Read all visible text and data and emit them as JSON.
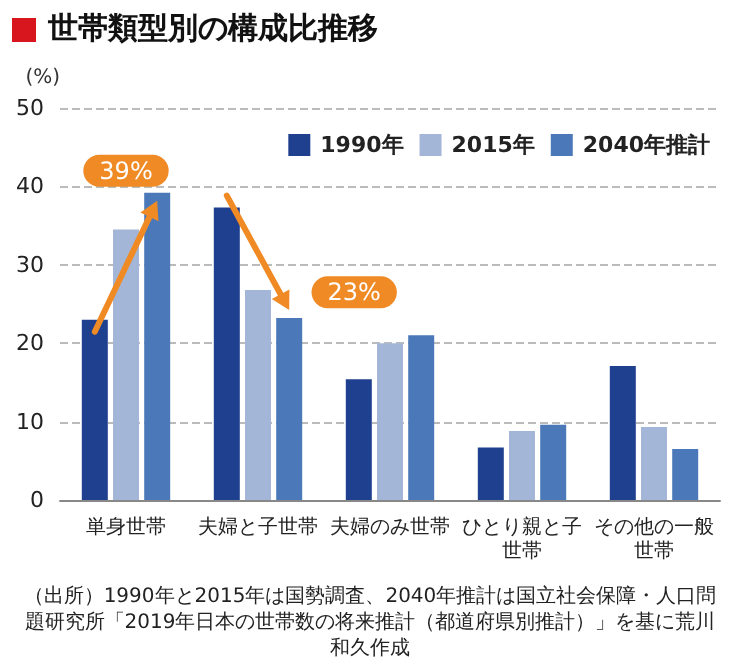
{
  "chart_data": {
    "type": "bar",
    "title": "世帯類型別の構成比推移",
    "ylabel": "(%)",
    "categories": [
      "単身世帯",
      "夫婦と子世帯",
      "夫婦のみ世帯",
      "ひとり親と子世帯",
      "その他の一般世帯"
    ],
    "series": [
      {
        "name": "1990年",
        "color": "#1f3f8f",
        "values": [
          23.0,
          37.3,
          15.4,
          6.7,
          17.1
        ]
      },
      {
        "name": "2015年",
        "color": "#a3b6d8",
        "values": [
          34.5,
          26.8,
          20.0,
          8.8,
          9.3
        ]
      },
      {
        "name": "2040年推計",
        "color": "#4a78b8",
        "values": [
          39.2,
          23.2,
          21.0,
          9.6,
          6.5
        ]
      }
    ],
    "ylim": [
      0,
      50
    ],
    "yticks": [
      0,
      10,
      20,
      30,
      40,
      50
    ],
    "grid": "y",
    "legend": "top right",
    "annotations": [
      {
        "text": "39%",
        "x": "単身世帯",
        "y": 42
      },
      {
        "text": "23%",
        "x": "夫婦と子世帯",
        "y": 26.5
      },
      "（出所）1990年と2015年は国勢調査、2040年推計は国立社会保障・人口問題研究所「2019年日本の世帯数の将来推計（都道府県別推計）」を基に荒川和久作成"
    ]
  }
}
